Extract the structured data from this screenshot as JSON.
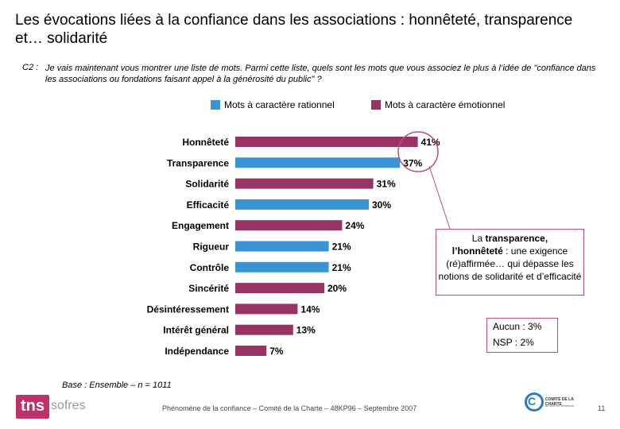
{
  "title": "Les évocations liées à la confiance dans les associations : honnêteté, transparence et… solidarité",
  "question": {
    "code": "C2 :",
    "text": "Je vais maintenant vous montrer une liste de mots. Parmi cette liste, quels sont les mots que vous associez le plus à l’idée de \"confiance dans les associations ou fondations faisant appel à la générosité du public\" ?"
  },
  "legend": [
    {
      "label": "Mots à caractère rationnel",
      "color": "#3a93d2"
    },
    {
      "label": "Mots à caractère émotionnel",
      "color": "#993366"
    }
  ],
  "chart_data": {
    "type": "bar",
    "orientation": "horizontal",
    "categories": [
      "Honnêteté",
      "Transparence",
      "Solidarité",
      "Efficacité",
      "Engagement",
      "Rigueur",
      "Contrôle",
      "Sincérité",
      "Désintéressement",
      "Intérêt général",
      "Indépendance"
    ],
    "values": [
      41,
      37,
      31,
      30,
      24,
      21,
      21,
      20,
      14,
      13,
      7
    ],
    "value_labels": [
      "41%",
      "37%",
      "31%",
      "30%",
      "24%",
      "21%",
      "21%",
      "20%",
      "14%",
      "13%",
      "7%"
    ],
    "groups": [
      "emotionnel",
      "rationnel",
      "emotionnel",
      "rationnel",
      "emotionnel",
      "rationnel",
      "rationnel",
      "emotionnel",
      "emotionnel",
      "emotionnel",
      "emotionnel"
    ],
    "colors": {
      "rationnel": "#3a93d2",
      "emotionnel": "#993366"
    },
    "xlim": [
      0,
      45
    ],
    "unit": "%"
  },
  "callout": {
    "line1": "La ",
    "bold1": "transparence,",
    "bold2": "l’honnêteté",
    "rest": " : une exigence (ré)affirmée… qui dépasse les notions de solidarité et d’efficacité"
  },
  "aucun": {
    "line1": "Aucun : 3%",
    "line2": "NSP : 2%"
  },
  "base": "Base : Ensemble – n = 1011",
  "footer": "Phénomène de la confiance – Comité de la Charte – 48KP96 – Septembre 2007",
  "page_number": "11",
  "logos": {
    "left_main": "tns",
    "left_sub": "sofres",
    "right_line1": "COMITÉ DE LA CHARTE",
    "right_line2": "du don en confiance",
    "right_letter": "C"
  }
}
